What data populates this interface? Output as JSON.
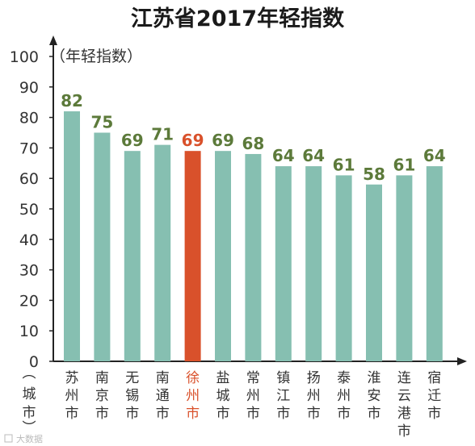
{
  "chart_data": {
    "type": "bar",
    "title": "江苏省2017年轻指数",
    "ylabel": "（年轻指数）",
    "xlabel": "（城市）",
    "ylim": [
      0,
      100
    ],
    "yticks": [
      "0",
      "10",
      "20",
      "30",
      "40",
      "50",
      "60",
      "70",
      "80",
      "90",
      "100"
    ],
    "categories": [
      "苏州市",
      "南京市",
      "无锡市",
      "南通市",
      "徐州市",
      "盐城市",
      "常州市",
      "镇江市",
      "扬州市",
      "泰州市",
      "淮安市",
      "连云港市",
      "宿迁市"
    ],
    "values": [
      82,
      75,
      69,
      71,
      69,
      69,
      68,
      64,
      64,
      61,
      58,
      61,
      64
    ],
    "highlight_index": 4,
    "grid": false,
    "colors": {
      "bar": "#86bfb1",
      "highlight": "#d9512b",
      "value_label": "#5c7a3a",
      "highlight_label": "#d9512b",
      "category_label": "#333333",
      "axis": "#222222"
    }
  },
  "watermark": "大数据"
}
